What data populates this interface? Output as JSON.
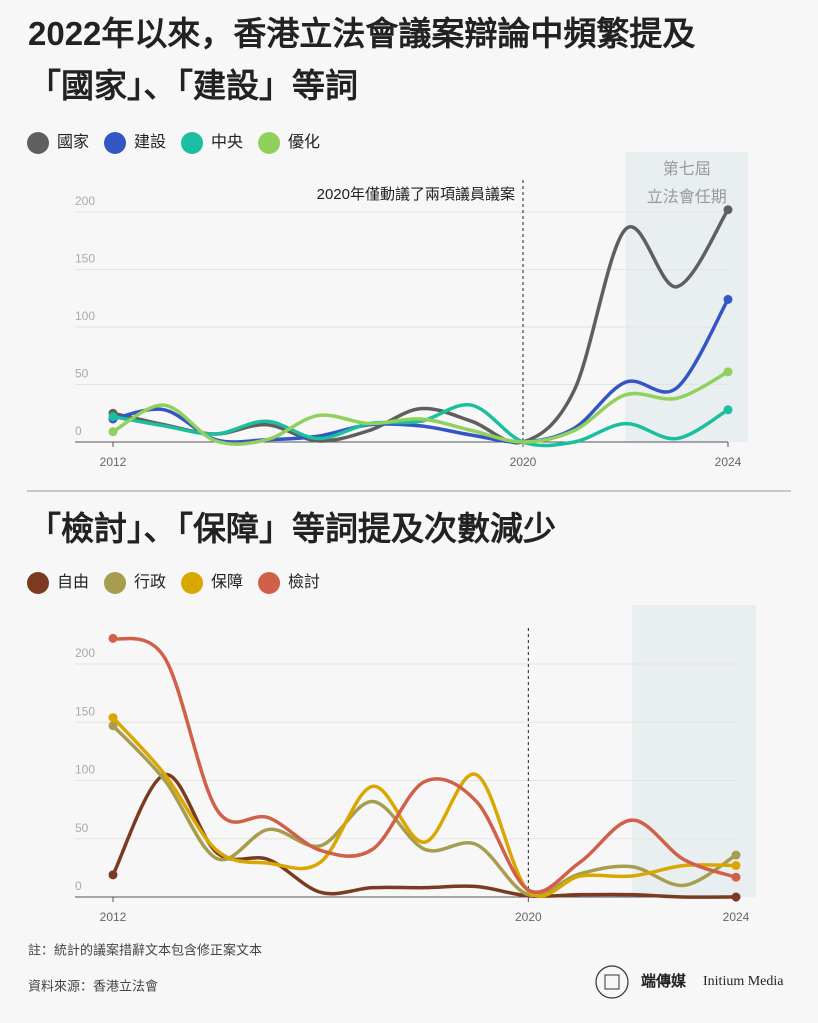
{
  "chart_data": [
    {
      "type": "line",
      "title_lines": [
        "2022年以來，香港立法會議案辯論中頻繁提及",
        "「國家」、「建設」等詞"
      ],
      "x": [
        2012,
        2013,
        2014,
        2015,
        2016,
        2017,
        2018,
        2019,
        2020,
        2021,
        2022,
        2023,
        2024
      ],
      "series": [
        {
          "name": "國家",
          "color": "#5f5f5f",
          "values": [
            25,
            15,
            7,
            15,
            1,
            10,
            29,
            18,
            0,
            45,
            185,
            135,
            202
          ]
        },
        {
          "name": "建設",
          "color": "#3455c4",
          "values": [
            20,
            28,
            2,
            2,
            5,
            15,
            14,
            6,
            0,
            12,
            52,
            47,
            124
          ]
        },
        {
          "name": "中央",
          "color": "#1bbf9f",
          "values": [
            22,
            14,
            7,
            18,
            3,
            16,
            18,
            32,
            0,
            0,
            16,
            3,
            28
          ]
        },
        {
          "name": "優化",
          "color": "#8fd15a",
          "values": [
            9,
            32,
            1,
            2,
            23,
            16,
            20,
            10,
            0,
            10,
            41,
            38,
            61
          ]
        }
      ],
      "xlim": [
        2012,
        2024
      ],
      "xticks": [
        2012,
        2020,
        2024
      ],
      "ylim": [
        0,
        200
      ],
      "yticks": [
        0,
        50,
        100,
        150,
        200
      ],
      "grid": true,
      "marker_x": 2020,
      "annotation": "2020年僅動議了兩項議員議案",
      "highlight_from": 2022,
      "highlight_label": [
        "第七屆",
        "立法會任期"
      ]
    },
    {
      "type": "line",
      "title_lines": [
        "「檢討」、「保障」等詞提及次數減少"
      ],
      "x": [
        2012,
        2013,
        2014,
        2015,
        2016,
        2017,
        2018,
        2019,
        2020,
        2021,
        2022,
        2023,
        2024
      ],
      "series": [
        {
          "name": "自由",
          "color": "#7a3b22",
          "values": [
            19,
            105,
            38,
            32,
            4,
            8,
            8,
            9,
            1,
            2,
            2,
            0,
            0
          ]
        },
        {
          "name": "行政",
          "color": "#a69e4e",
          "values": [
            147,
            100,
            33,
            58,
            44,
            82,
            41,
            45,
            2,
            20,
            26,
            10,
            36
          ]
        },
        {
          "name": "保障",
          "color": "#d9a800",
          "values": [
            154,
            105,
            40,
            29,
            30,
            95,
            47,
            105,
            5,
            18,
            18,
            27,
            27
          ]
        },
        {
          "name": "檢討",
          "color": "#d0604a",
          "values": [
            222,
            205,
            75,
            68,
            40,
            41,
            99,
            82,
            6,
            30,
            66,
            32,
            17
          ]
        }
      ],
      "xlim": [
        2012,
        2024
      ],
      "xticks": [
        2012,
        2020,
        2024
      ],
      "ylim": [
        0,
        200
      ],
      "yticks": [
        0,
        50,
        100,
        150,
        200
      ],
      "grid": true,
      "marker_x": 2020,
      "highlight_from": 2022
    }
  ],
  "note": "註：統計的議案措辭文本包含修正案文本",
  "source": "資料來源：香港立法會",
  "brand": "端傳媒",
  "brand_en": "Initium Media"
}
